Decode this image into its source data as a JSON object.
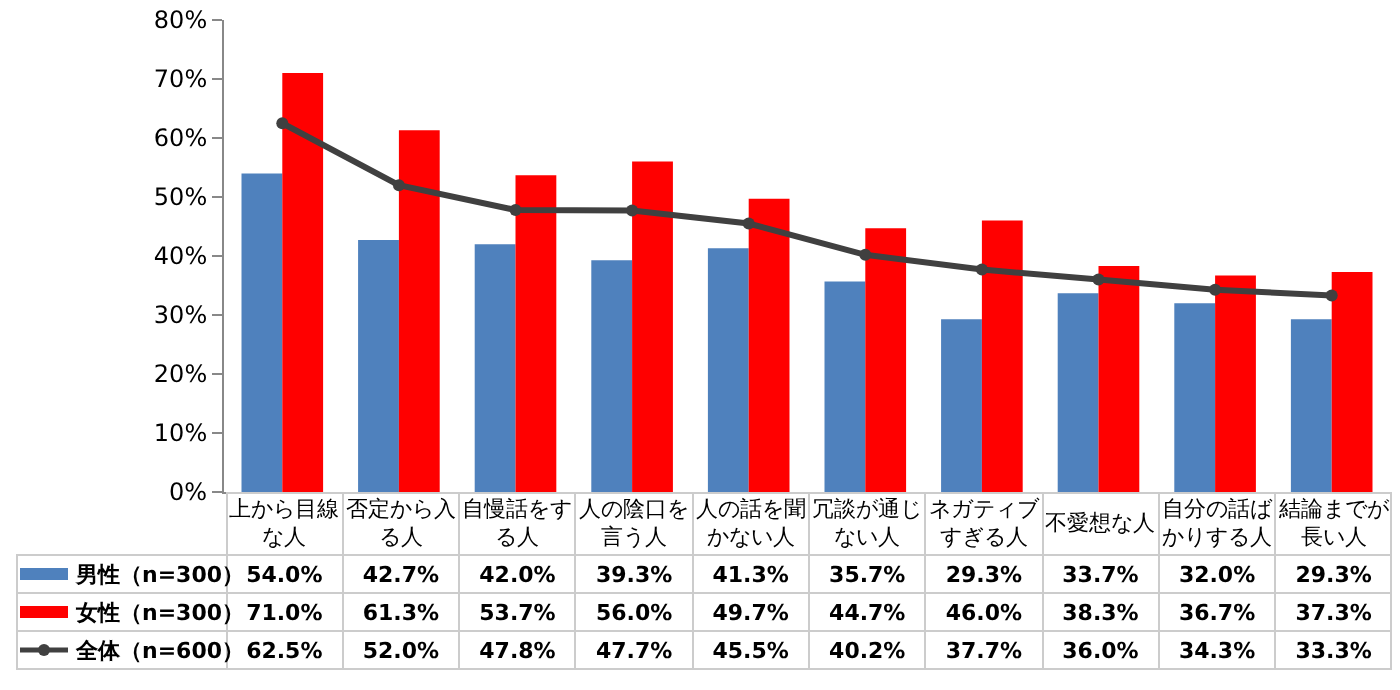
{
  "chart_data": {
    "type": "bar",
    "categories": [
      "上から目線な人",
      "否定から入る人",
      "自慢話をする人",
      "人の陰口を言う人",
      "人の話を聞かない人",
      "冗談が通じない人",
      "ネガティブすぎる人",
      "不愛想な人",
      "自分の話ばかりする人",
      "結論までが長い人"
    ],
    "series": [
      {
        "name": "男性（n=300）",
        "color": "#4f81bd",
        "values": [
          54.0,
          42.7,
          42.0,
          39.3,
          41.3,
          35.7,
          29.3,
          33.7,
          32.0,
          29.3
        ],
        "value_labels": [
          "54.0%",
          "42.7%",
          "42.0%",
          "39.3%",
          "41.3%",
          "35.7%",
          "29.3%",
          "33.7%",
          "32.0%",
          "29.3%"
        ]
      },
      {
        "name": "女性（n=300）",
        "color": "#ff0000",
        "values": [
          71.0,
          61.3,
          53.7,
          56.0,
          49.7,
          44.7,
          46.0,
          38.3,
          36.7,
          37.3
        ],
        "value_labels": [
          "71.0%",
          "61.3%",
          "53.7%",
          "56.0%",
          "49.7%",
          "44.7%",
          "46.0%",
          "38.3%",
          "36.7%",
          "37.3%"
        ]
      },
      {
        "name": "全体（n=600）",
        "type": "line",
        "color": "#404040",
        "marker": "circle",
        "values": [
          62.5,
          52.0,
          47.8,
          47.7,
          45.5,
          40.2,
          37.7,
          36.0,
          34.3,
          33.3
        ],
        "value_labels": [
          "62.5%",
          "52.0%",
          "47.8%",
          "47.7%",
          "45.5%",
          "40.2%",
          "37.7%",
          "36.0%",
          "34.3%",
          "33.3%"
        ]
      }
    ],
    "ylim": [
      0,
      80
    ],
    "yticks": [
      {
        "value": 0,
        "label": "0%"
      },
      {
        "value": 10,
        "label": "10%"
      },
      {
        "value": 20,
        "label": "20%"
      },
      {
        "value": 30,
        "label": "30%"
      },
      {
        "value": 40,
        "label": "40%"
      },
      {
        "value": 50,
        "label": "50%"
      },
      {
        "value": 60,
        "label": "60%"
      },
      {
        "value": 70,
        "label": "70%"
      },
      {
        "value": 80,
        "label": "80%"
      }
    ],
    "grid": false,
    "legend": "bottom left"
  }
}
